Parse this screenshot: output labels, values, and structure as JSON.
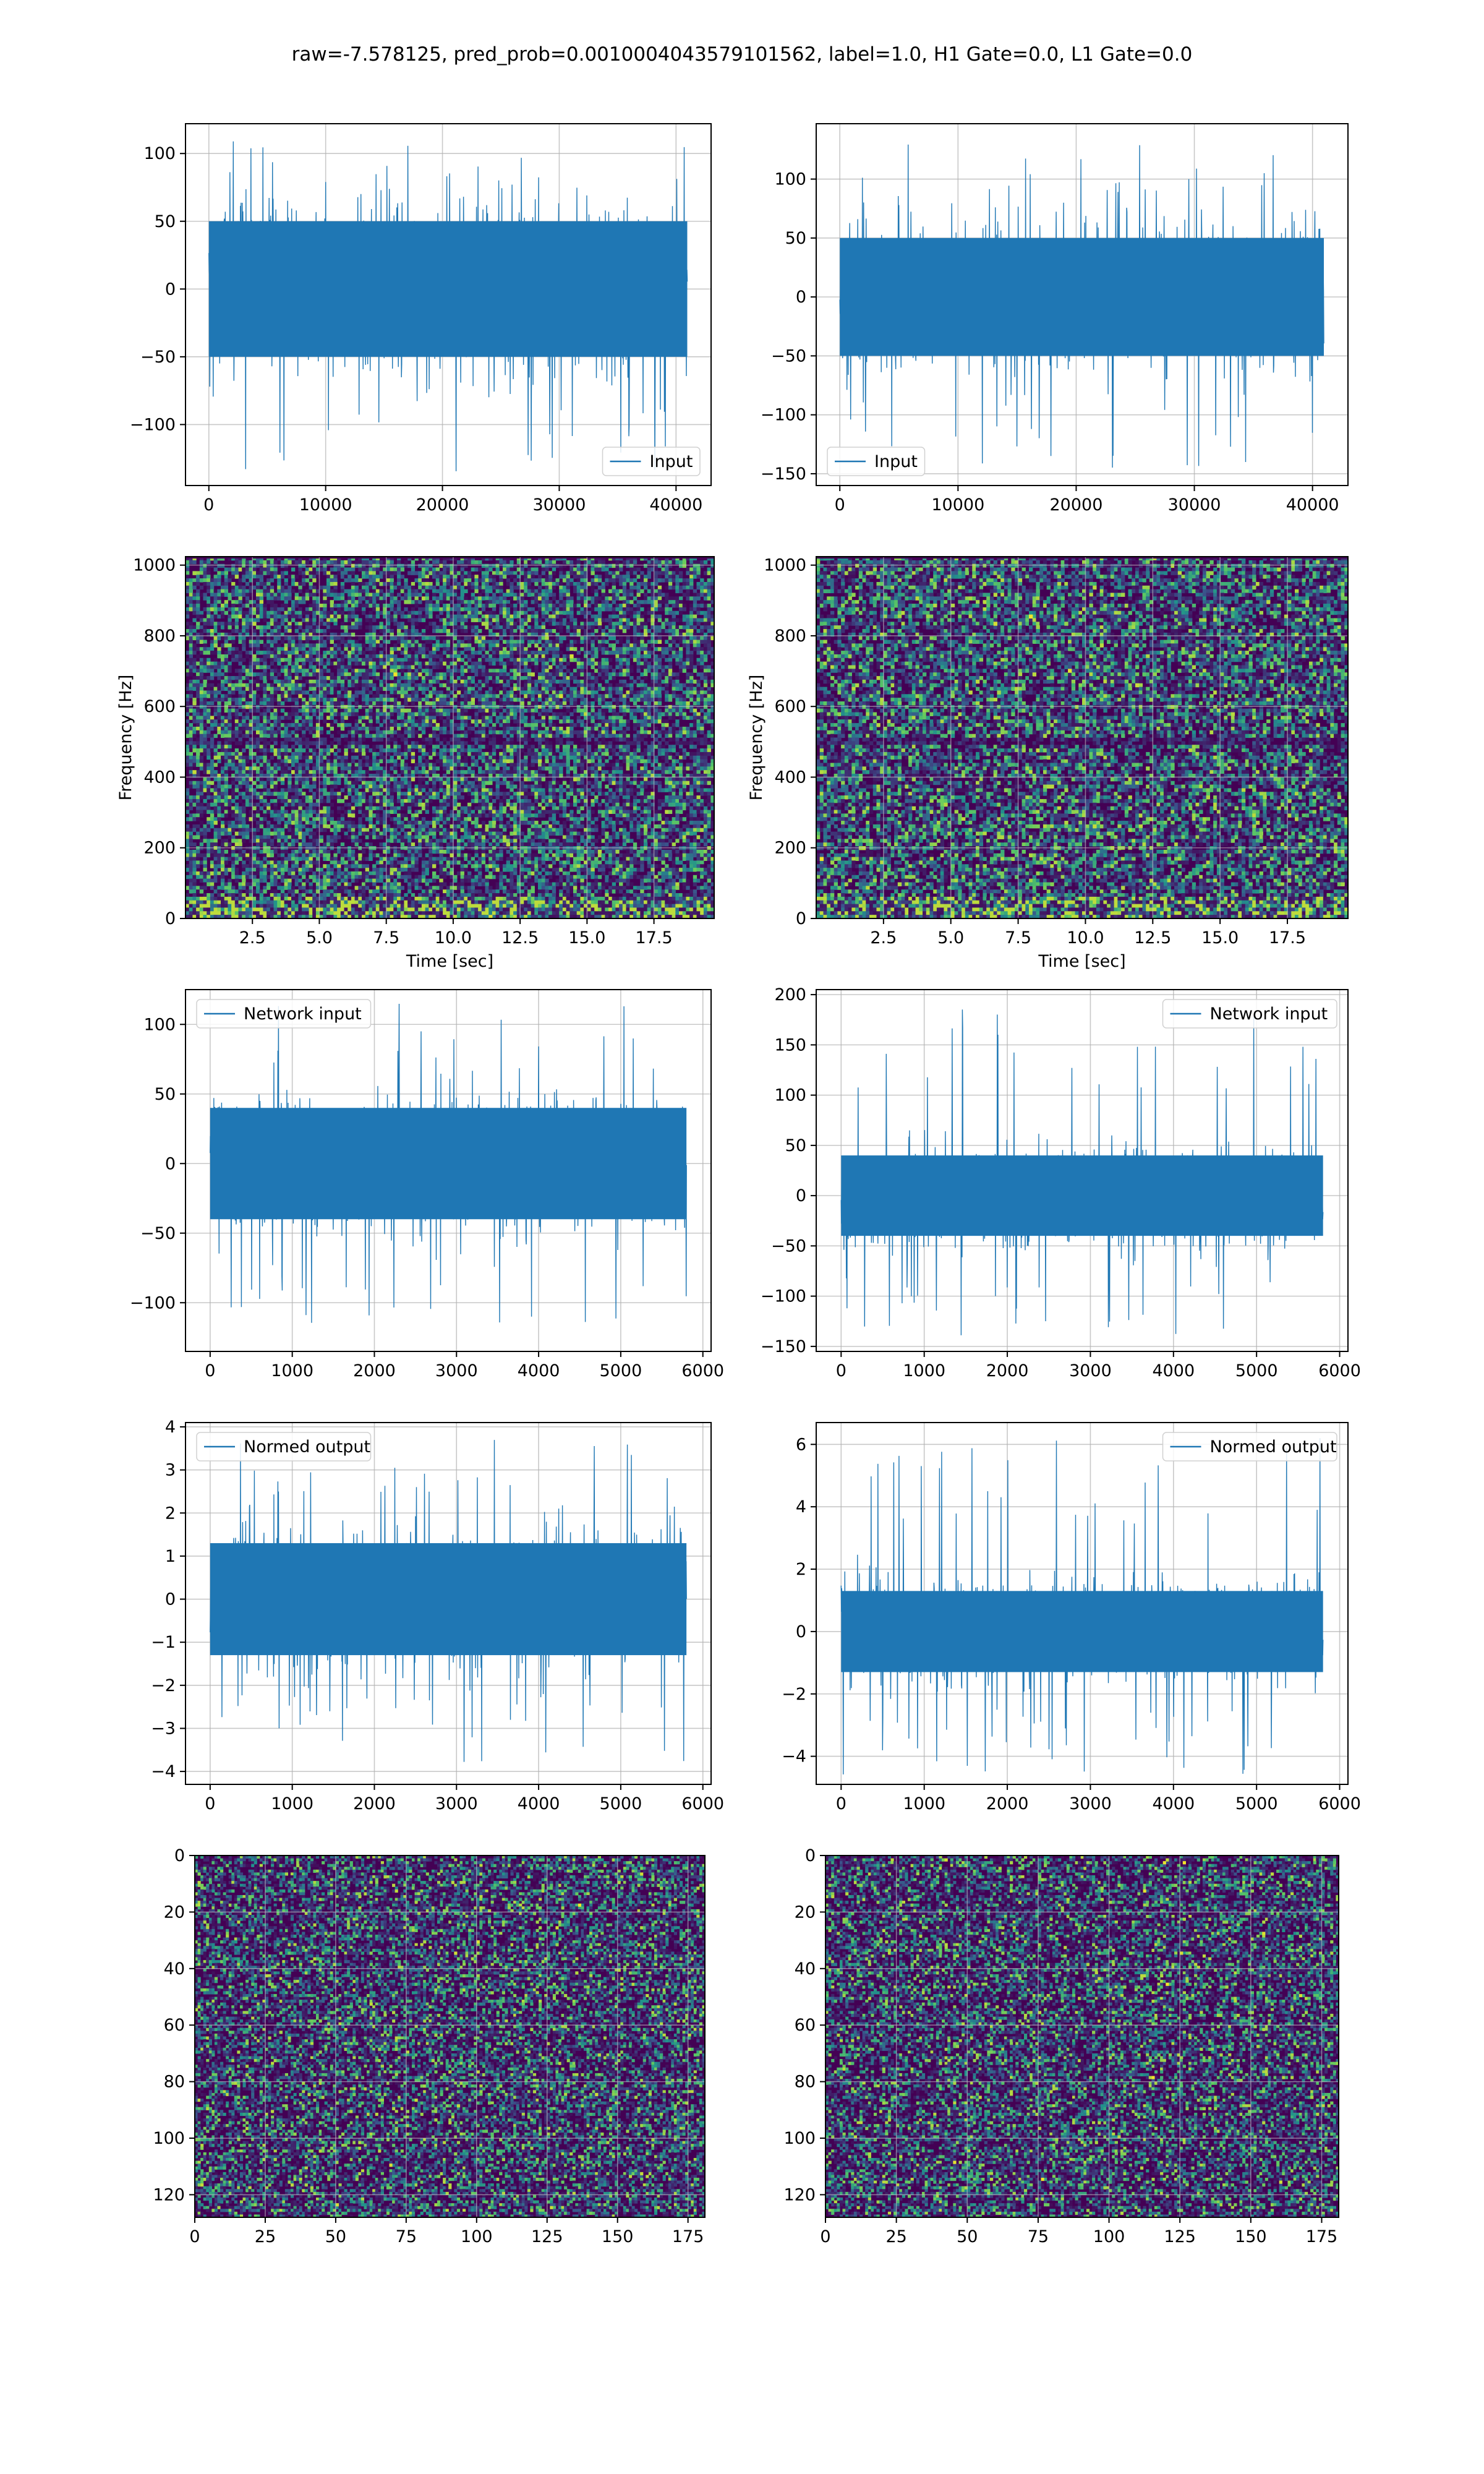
{
  "figure": {
    "title": "raw=-7.578125, pred_prob=0.0010004043579101562, label=1.0, H1 Gate=0.0, L1 Gate=0.0"
  },
  "colors": {
    "series": "#1f77b4",
    "grid": "#b0b0b0",
    "viridis": [
      "#440154",
      "#3b528b",
      "#21918c",
      "#5ec962",
      "#fde725"
    ]
  },
  "chart_data": [
    {
      "id": "row1-left",
      "type": "line",
      "legend": [
        "Input"
      ],
      "legend_position": "lower right",
      "series": [
        {
          "name": "Input",
          "x_range": [
            0,
            40960
          ],
          "amplitude": 50,
          "peak_min": -135,
          "peak_max": 110
        }
      ],
      "xlim": [
        -2000,
        43000
      ],
      "ylim": [
        -145,
        122
      ],
      "xticks": [
        0,
        10000,
        20000,
        30000,
        40000
      ],
      "yticks": [
        -100,
        -50,
        0,
        50,
        100
      ],
      "xlabel": "",
      "ylabel": "",
      "grid": true
    },
    {
      "id": "row1-right",
      "type": "line",
      "legend": [
        "Input"
      ],
      "legend_position": "lower left",
      "series": [
        {
          "name": "Input",
          "x_range": [
            0,
            40960
          ],
          "amplitude": 50,
          "peak_min": -148,
          "peak_max": 130
        }
      ],
      "xlim": [
        -2000,
        43000
      ],
      "ylim": [
        -160,
        147
      ],
      "xticks": [
        0,
        10000,
        20000,
        30000,
        40000
      ],
      "yticks": [
        -150,
        -100,
        -50,
        0,
        50,
        100
      ],
      "xlabel": "",
      "ylabel": "",
      "grid": true
    },
    {
      "id": "row2-left",
      "type": "heatmap",
      "xlim": [
        0,
        19.75
      ],
      "ylim": [
        0,
        1024
      ],
      "xticks": [
        2.5,
        5.0,
        7.5,
        10.0,
        12.5,
        15.0,
        17.5
      ],
      "xtick_labels": [
        "2.5",
        "5.0",
        "7.5",
        "10.0",
        "12.5",
        "15.0",
        "17.5"
      ],
      "yticks": [
        0,
        200,
        400,
        600,
        800,
        1000
      ],
      "xlabel": "Time [sec]",
      "ylabel": "Frequency [Hz]",
      "grid": true,
      "colormap": "viridis"
    },
    {
      "id": "row2-right",
      "type": "heatmap",
      "xlim": [
        0,
        19.75
      ],
      "ylim": [
        0,
        1024
      ],
      "xticks": [
        2.5,
        5.0,
        7.5,
        10.0,
        12.5,
        15.0,
        17.5
      ],
      "xtick_labels": [
        "2.5",
        "5.0",
        "7.5",
        "10.0",
        "12.5",
        "15.0",
        "17.5"
      ],
      "yticks": [
        0,
        200,
        400,
        600,
        800,
        1000
      ],
      "xlabel": "Time [sec]",
      "ylabel": "Frequency [Hz]",
      "grid": true,
      "colormap": "viridis"
    },
    {
      "id": "row3-left",
      "type": "line",
      "legend": [
        "Network input"
      ],
      "legend_position": "upper left",
      "series": [
        {
          "name": "Network input",
          "x_range": [
            0,
            5800
          ],
          "amplitude": 40,
          "peak_min": -125,
          "peak_max": 115
        }
      ],
      "xlim": [
        -300,
        6100
      ],
      "ylim": [
        -135,
        125
      ],
      "xticks": [
        0,
        1000,
        2000,
        3000,
        4000,
        5000,
        6000
      ],
      "yticks": [
        -100,
        -50,
        0,
        50,
        100
      ],
      "xlabel": "",
      "ylabel": "",
      "grid": true
    },
    {
      "id": "row3-right",
      "type": "line",
      "legend": [
        "Network input"
      ],
      "legend_position": "upper right",
      "series": [
        {
          "name": "Network input",
          "x_range": [
            0,
            5800
          ],
          "amplitude": 40,
          "peak_min": -142,
          "peak_max": 190
        }
      ],
      "xlim": [
        -300,
        6100
      ],
      "ylim": [
        -155,
        205
      ],
      "xticks": [
        0,
        1000,
        2000,
        3000,
        4000,
        5000,
        6000
      ],
      "yticks": [
        -150,
        -100,
        -50,
        0,
        50,
        100,
        150,
        200
      ],
      "xlabel": "",
      "ylabel": "",
      "grid": true
    },
    {
      "id": "row4-left",
      "type": "line",
      "legend": [
        "Normed output"
      ],
      "legend_position": "upper left",
      "series": [
        {
          "name": "Normed output",
          "x_range": [
            0,
            5800
          ],
          "amplitude": 1.3,
          "peak_min": -4.0,
          "peak_max": 3.7
        }
      ],
      "xlim": [
        -300,
        6100
      ],
      "ylim": [
        -4.3,
        4.1
      ],
      "xticks": [
        0,
        1000,
        2000,
        3000,
        4000,
        5000,
        6000
      ],
      "yticks": [
        -4,
        -3,
        -2,
        -1,
        0,
        1,
        2,
        3,
        4
      ],
      "xlabel": "",
      "ylabel": "",
      "grid": true
    },
    {
      "id": "row4-right",
      "type": "line",
      "legend": [
        "Normed output"
      ],
      "legend_position": "upper right",
      "series": [
        {
          "name": "Normed output",
          "x_range": [
            0,
            5800
          ],
          "amplitude": 1.3,
          "peak_min": -4.6,
          "peak_max": 6.2
        }
      ],
      "xlim": [
        -300,
        6100
      ],
      "ylim": [
        -4.9,
        6.7
      ],
      "xticks": [
        0,
        1000,
        2000,
        3000,
        4000,
        5000,
        6000
      ],
      "yticks": [
        -4,
        -2,
        0,
        2,
        4,
        6
      ],
      "xlabel": "",
      "ylabel": "",
      "grid": true
    },
    {
      "id": "row5-left",
      "type": "heatmap",
      "xlim": [
        0,
        181
      ],
      "ylim": [
        0,
        128
      ],
      "y_inverted": true,
      "xticks": [
        0,
        25,
        50,
        75,
        100,
        125,
        150,
        175
      ],
      "yticks": [
        0,
        20,
        40,
        60,
        80,
        100,
        120
      ],
      "xlabel": "",
      "ylabel": "",
      "grid": true,
      "colormap": "viridis",
      "grid_size": [
        181,
        128
      ]
    },
    {
      "id": "row5-right",
      "type": "heatmap",
      "xlim": [
        0,
        181
      ],
      "ylim": [
        0,
        128
      ],
      "y_inverted": true,
      "xticks": [
        0,
        25,
        50,
        75,
        100,
        125,
        150,
        175
      ],
      "yticks": [
        0,
        20,
        40,
        60,
        80,
        100,
        120
      ],
      "xlabel": "",
      "ylabel": "",
      "grid": true,
      "colormap": "viridis",
      "grid_size": [
        181,
        128
      ]
    }
  ]
}
